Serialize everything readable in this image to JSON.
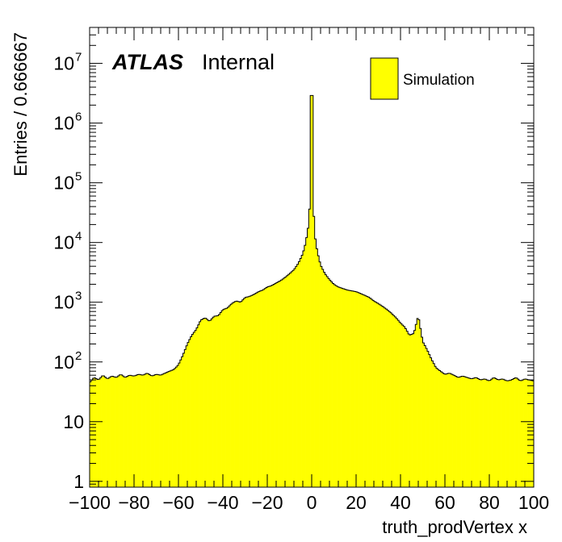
{
  "chart_data": {
    "type": "histogram",
    "xlabel": "truth_prodVertex x",
    "ylabel": "Entries / 0.666667",
    "xlim": [
      -100,
      100
    ],
    "ylim": [
      0.8,
      40000000
    ],
    "log_y": true,
    "bin_width": 0.666667,
    "fill_color": "#ffff00",
    "line_color": "#000000",
    "x_ticks": [
      {
        "value": -100,
        "label": "−100"
      },
      {
        "value": -80,
        "label": "−80"
      },
      {
        "value": -60,
        "label": "−60"
      },
      {
        "value": -40,
        "label": "−40"
      },
      {
        "value": -20,
        "label": "−20"
      },
      {
        "value": 0,
        "label": "0"
      },
      {
        "value": 20,
        "label": "20"
      },
      {
        "value": 40,
        "label": "40"
      },
      {
        "value": 60,
        "label": "60"
      },
      {
        "value": 80,
        "label": "80"
      },
      {
        "value": 100,
        "label": "100"
      }
    ],
    "y_ticks": [
      {
        "value": 1,
        "base": "1",
        "exp": ""
      },
      {
        "value": 10,
        "base": "10",
        "exp": ""
      },
      {
        "value": 100,
        "base": "10",
        "exp": "2"
      },
      {
        "value": 1000,
        "base": "10",
        "exp": "3"
      },
      {
        "value": 10000,
        "base": "10",
        "exp": "4"
      },
      {
        "value": 100000,
        "base": "10",
        "exp": "5"
      },
      {
        "value": 1000000,
        "base": "10",
        "exp": "6"
      },
      {
        "value": 10000000,
        "base": "10",
        "exp": "7"
      }
    ],
    "legend": {
      "label": "Simulation",
      "position": "top-right"
    },
    "annotation": {
      "bold_italic": "ATLAS",
      "text": "Internal"
    },
    "series": [
      {
        "name": "Simulation",
        "points": [
          [
            -100,
            45
          ],
          [
            -98,
            55
          ],
          [
            -96,
            50
          ],
          [
            -94,
            60
          ],
          [
            -92,
            52
          ],
          [
            -90,
            58
          ],
          [
            -88,
            55
          ],
          [
            -86,
            62
          ],
          [
            -84,
            55
          ],
          [
            -82,
            60
          ],
          [
            -80,
            58
          ],
          [
            -78,
            62
          ],
          [
            -76,
            60
          ],
          [
            -74,
            65
          ],
          [
            -72,
            58
          ],
          [
            -70,
            62
          ],
          [
            -68,
            60
          ],
          [
            -66,
            65
          ],
          [
            -64,
            70
          ],
          [
            -62,
            75
          ],
          [
            -60,
            90
          ],
          [
            -58,
            130
          ],
          [
            -56,
            200
          ],
          [
            -54,
            280
          ],
          [
            -52,
            350
          ],
          [
            -50,
            500
          ],
          [
            -48,
            550
          ],
          [
            -46,
            480
          ],
          [
            -44,
            580
          ],
          [
            -42,
            600
          ],
          [
            -40,
            750
          ],
          [
            -38,
            800
          ],
          [
            -36,
            950
          ],
          [
            -34,
            1050
          ],
          [
            -32,
            1000
          ],
          [
            -30,
            1200
          ],
          [
            -28,
            1250
          ],
          [
            -26,
            1350
          ],
          [
            -24,
            1500
          ],
          [
            -22,
            1600
          ],
          [
            -20,
            1800
          ],
          [
            -18,
            1900
          ],
          [
            -16,
            2100
          ],
          [
            -14,
            2300
          ],
          [
            -12,
            2600
          ],
          [
            -10,
            3000
          ],
          [
            -8,
            3500
          ],
          [
            -6,
            4500
          ],
          [
            -4,
            6500
          ],
          [
            -3,
            9000
          ],
          [
            -2,
            14000
          ],
          [
            -1.3,
            22000
          ],
          [
            -0.7,
            60000
          ],
          [
            0,
            2900000
          ],
          [
            0.7,
            50000
          ],
          [
            1.3,
            15000
          ],
          [
            2,
            9000
          ],
          [
            3,
            6000
          ],
          [
            4,
            4200
          ],
          [
            6,
            3000
          ],
          [
            8,
            2400
          ],
          [
            10,
            2000
          ],
          [
            12,
            1800
          ],
          [
            14,
            1700
          ],
          [
            16,
            1600
          ],
          [
            18,
            1550
          ],
          [
            20,
            1500
          ],
          [
            22,
            1400
          ],
          [
            24,
            1300
          ],
          [
            26,
            1200
          ],
          [
            28,
            1050
          ],
          [
            30,
            950
          ],
          [
            32,
            850
          ],
          [
            34,
            750
          ],
          [
            36,
            650
          ],
          [
            38,
            550
          ],
          [
            40,
            450
          ],
          [
            42,
            380
          ],
          [
            44,
            280
          ],
          [
            46,
            300
          ],
          [
            48,
            600
          ],
          [
            50,
            220
          ],
          [
            52,
            160
          ],
          [
            54,
            110
          ],
          [
            56,
            80
          ],
          [
            58,
            70
          ],
          [
            60,
            62
          ],
          [
            62,
            65
          ],
          [
            64,
            60
          ],
          [
            66,
            55
          ],
          [
            68,
            58
          ],
          [
            70,
            55
          ],
          [
            72,
            52
          ],
          [
            74,
            55
          ],
          [
            76,
            50
          ],
          [
            78,
            52
          ],
          [
            80,
            48
          ],
          [
            82,
            55
          ],
          [
            84,
            50
          ],
          [
            86,
            52
          ],
          [
            88,
            48
          ],
          [
            90,
            50
          ],
          [
            92,
            55
          ],
          [
            94,
            48
          ],
          [
            96,
            52
          ],
          [
            98,
            50
          ],
          [
            100,
            48
          ]
        ]
      }
    ]
  }
}
